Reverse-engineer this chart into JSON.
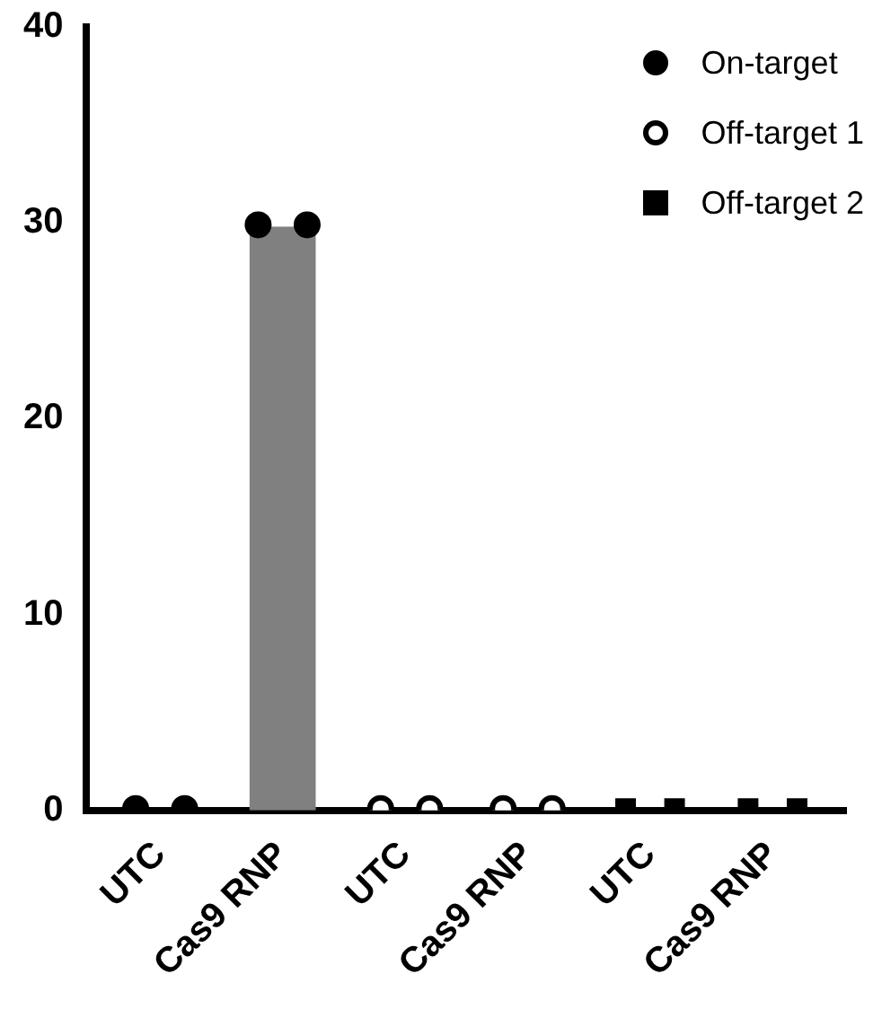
{
  "chart_data": {
    "type": "bar",
    "categories": [
      "UTC",
      "Cas9 RNP",
      "UTC",
      "Cas9 RNP",
      "UTC",
      "Cas9 RNP"
    ],
    "series": [
      {
        "color": "#808080",
        "values": [
          0,
          29.8,
          0,
          0,
          0,
          0
        ]
      },
      {
        "type": "scatter",
        "name": "On-target",
        "color": "#000000",
        "marker": "circle",
        "values": [
          0.1,
          29.9,
          null,
          null,
          null,
          null
        ]
      },
      {
        "type": "scatter",
        "color": "#000000",
        "marker": "circle",
        "values": [
          0.1,
          29.9,
          null,
          null,
          null,
          null
        ]
      },
      {
        "type": "scatter",
        "name": "Off-target 1",
        "color": "#ffffff",
        "marker": "circle",
        "values": [
          null,
          null,
          0.1,
          0.1,
          null,
          null
        ]
      },
      {
        "type": "scatter",
        "color": "#ffffff",
        "marker": "circle",
        "values": [
          null,
          null,
          0.1,
          0.1,
          null,
          null
        ]
      },
      {
        "type": "scatter",
        "name": "Off-target 2",
        "color": "#000000",
        "marker": "square",
        "values": [
          null,
          null,
          null,
          null,
          0.1,
          0.1
        ]
      },
      {
        "type": "scatter",
        "color": "#000000",
        "marker": "square",
        "values": [
          null,
          null,
          null,
          null,
          0.1,
          0.1
        ]
      }
    ],
    "ylim": [
      0,
      40
    ],
    "yticks": [
      0,
      10,
      20,
      30,
      40
    ],
    "grid": false,
    "legend": "top right"
  }
}
